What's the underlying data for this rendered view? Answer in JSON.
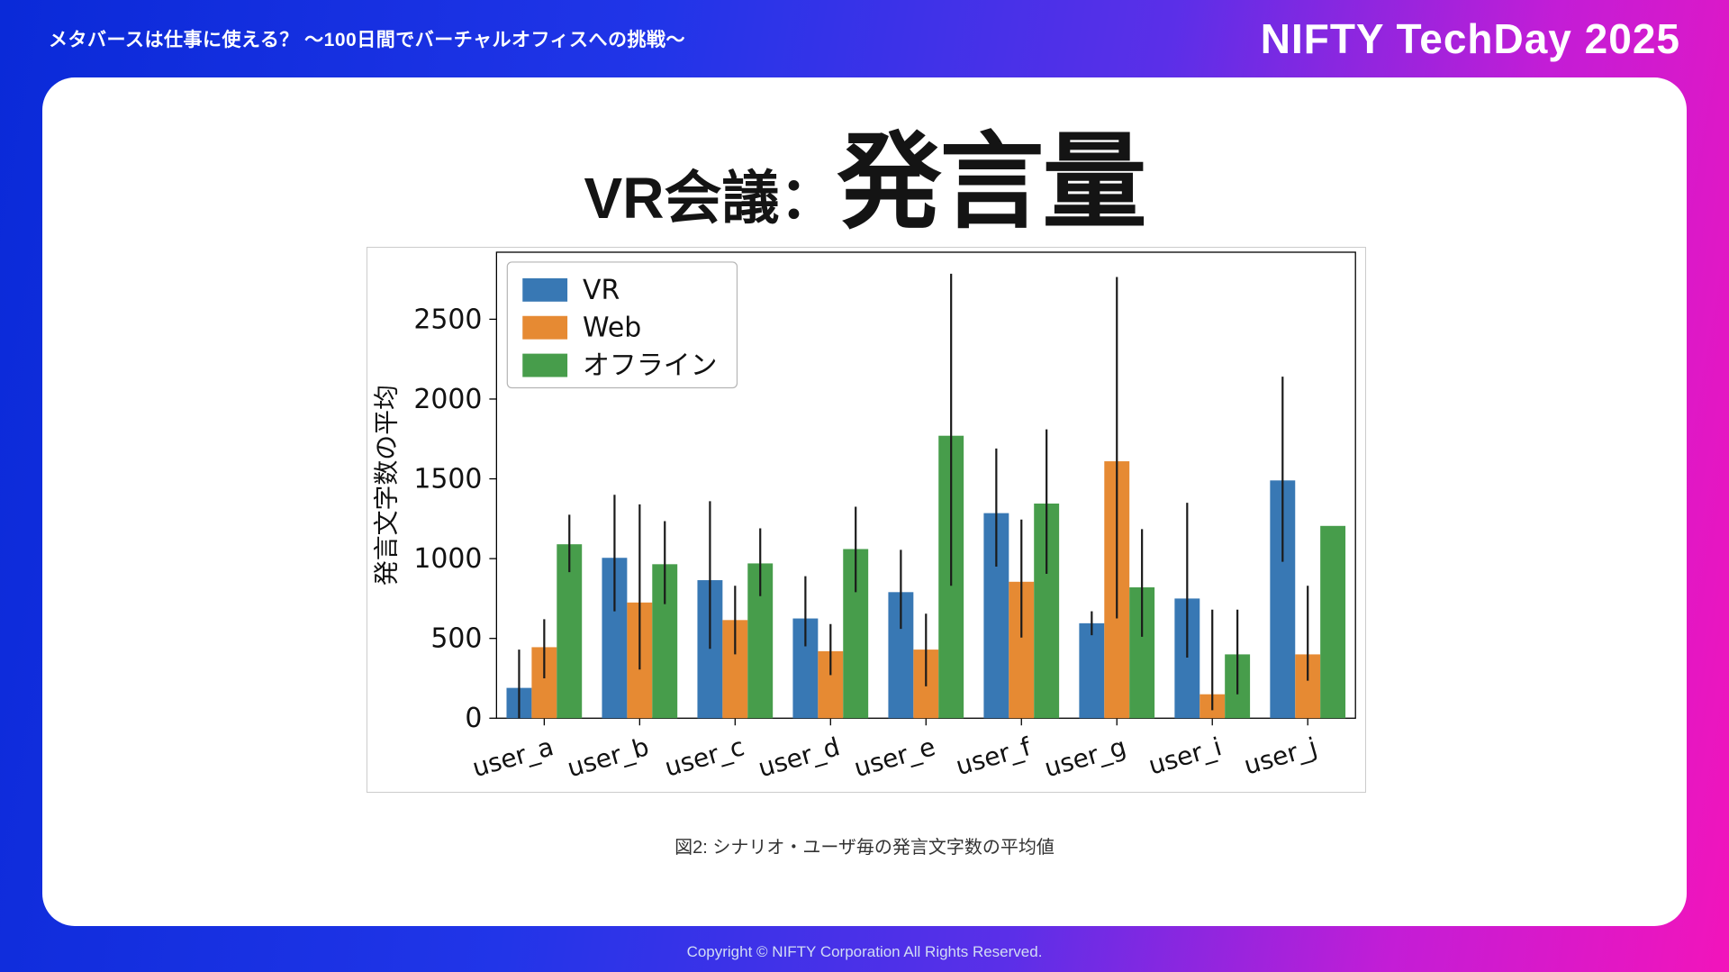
{
  "header": {
    "subtitle": "メタバースは仕事に使える？ 〜100日間でバーチャルオフィスへの挑戦〜",
    "logo": "NIFTY TechDay 2025"
  },
  "slide": {
    "title_prefix": "VR会議：",
    "title_main": "発言量",
    "caption": "図2: シナリオ・ユーザ毎の発言文字数の平均値"
  },
  "footer": {
    "copyright": "Copyright © NIFTY Corporation All Rights Reserved."
  },
  "colors": {
    "bg_gradient_left": "#0a2ad8",
    "bg_gradient_right": "#f214bb",
    "card_bg": "#ffffff",
    "vr_blue": "#3878b4",
    "web_orange": "#e68a33",
    "offline_green": "#479d4b"
  },
  "chart_data": {
    "type": "bar",
    "title": "",
    "xlabel": "",
    "ylabel": "発言文字数の平均",
    "ylim": [
      0,
      2920
    ],
    "yticks": [
      0,
      500,
      1000,
      1500,
      2000,
      2500
    ],
    "grid": false,
    "legend_position": "upper-left",
    "error_bars": true,
    "categories": [
      "user_a",
      "user_b",
      "user_c",
      "user_d",
      "user_e",
      "user_f",
      "user_g",
      "user_i",
      "user_j"
    ],
    "series": [
      {
        "name": "VR",
        "color": "#3878b4",
        "values": [
          190,
          1005,
          865,
          625,
          790,
          1285,
          595,
          750,
          1490
        ],
        "error_low": [
          0,
          670,
          435,
          450,
          560,
          950,
          520,
          380,
          980
        ],
        "error_high": [
          430,
          1400,
          1360,
          890,
          1055,
          1690,
          670,
          1350,
          2140
        ]
      },
      {
        "name": "Web",
        "color": "#e68a33",
        "values": [
          445,
          725,
          615,
          420,
          430,
          855,
          1610,
          150,
          400
        ],
        "error_low": [
          250,
          305,
          400,
          270,
          200,
          505,
          625,
          50,
          235
        ],
        "error_high": [
          620,
          1340,
          830,
          590,
          655,
          1245,
          2765,
          680,
          830
        ]
      },
      {
        "name": "オフライン",
        "color": "#479d4b",
        "values": [
          1090,
          965,
          970,
          1060,
          1770,
          1345,
          820,
          400,
          1205
        ],
        "error_low": [
          915,
          715,
          765,
          790,
          830,
          905,
          510,
          150,
          1205
        ],
        "error_high": [
          1275,
          1235,
          1190,
          1325,
          2785,
          1810,
          1185,
          680,
          1205
        ]
      }
    ]
  }
}
